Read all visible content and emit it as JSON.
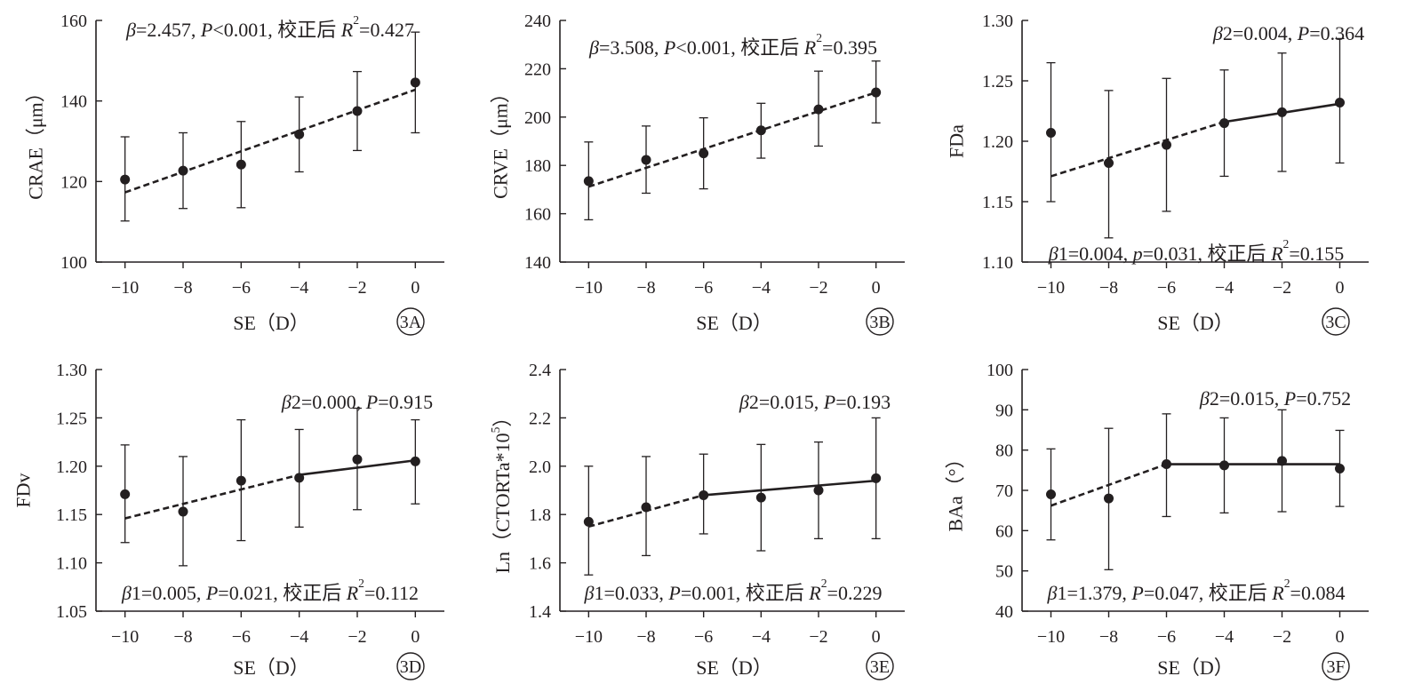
{
  "chart_data": [
    {
      "type": "scatter",
      "panel_label": "3A",
      "xlabel": "SE（D）",
      "ylabel": "CRAE（μm）",
      "xlim": [
        -11,
        1
      ],
      "ylim": [
        100,
        160
      ],
      "xticks": [
        -10,
        -8,
        -6,
        -4,
        -2,
        0
      ],
      "yticks": [
        100,
        120,
        140,
        160
      ],
      "xtick_labels": [
        "−10",
        "−8",
        "−6",
        "−4",
        "−2",
        "0"
      ],
      "ytick_labels": [
        "100",
        "120",
        "140",
        "160"
      ],
      "x": [
        -10,
        -8,
        -6,
        -4,
        -2,
        0
      ],
      "y": [
        120.5,
        122.7,
        124.2,
        131.7,
        137.5,
        144.6
      ],
      "err_low": [
        110.2,
        113.3,
        113.5,
        122.4,
        127.7,
        132.1
      ],
      "err_high": [
        131.1,
        132.1,
        134.9,
        141.0,
        147.3,
        157.1
      ],
      "fits": [
        {
          "x": [
            -10,
            0
          ],
          "y": [
            117.3,
            142.8
          ],
          "style": "dashed"
        }
      ],
      "annotations": [
        {
          "parts": [
            {
              "t": "β",
              "i": true
            },
            {
              "t": "=2.457, "
            },
            {
              "t": "P",
              "i": true
            },
            {
              "t": "<0.001, 校正后 "
            },
            {
              "t": "R",
              "i": true
            },
            {
              "t": "2",
              "sup": true
            },
            {
              "t": "=0.427"
            }
          ]
        }
      ]
    },
    {
      "type": "scatter",
      "panel_label": "3B",
      "xlabel": "SE（D）",
      "ylabel": "CRVE（μm）",
      "xlim": [
        -11,
        1
      ],
      "ylim": [
        140,
        240
      ],
      "xticks": [
        -10,
        -8,
        -6,
        -4,
        -2,
        0
      ],
      "yticks": [
        140,
        160,
        180,
        200,
        220,
        240
      ],
      "xtick_labels": [
        "−10",
        "−8",
        "−6",
        "−4",
        "−2",
        "0"
      ],
      "ytick_labels": [
        "140",
        "160",
        "180",
        "200",
        "220",
        "240"
      ],
      "x": [
        -10,
        -8,
        -6,
        -4,
        -2,
        0
      ],
      "y": [
        173.5,
        182.3,
        185.0,
        194.5,
        203.2,
        210.2
      ],
      "err_low": [
        157.5,
        168.5,
        170.3,
        183.0,
        188.0,
        197.6
      ],
      "err_high": [
        189.7,
        196.3,
        199.7,
        205.7,
        219.0,
        223.2
      ],
      "fits": [
        {
          "x": [
            -10,
            0
          ],
          "y": [
            171.2,
            210.2
          ],
          "style": "dashed"
        }
      ],
      "annotations": [
        {
          "parts": [
            {
              "t": "β",
              "i": true
            },
            {
              "t": "=3.508, "
            },
            {
              "t": "P",
              "i": true
            },
            {
              "t": "<0.001, 校正后 "
            },
            {
              "t": "R",
              "i": true
            },
            {
              "t": "2",
              "sup": true
            },
            {
              "t": "=0.395"
            }
          ]
        }
      ]
    },
    {
      "type": "scatter",
      "panel_label": "3C",
      "xlabel": "SE（D）",
      "ylabel": "FDa",
      "xlim": [
        -11,
        1
      ],
      "ylim": [
        1.1,
        1.3
      ],
      "xticks": [
        -10,
        -8,
        -6,
        -4,
        -2,
        0
      ],
      "yticks": [
        1.1,
        1.15,
        1.2,
        1.25,
        1.3
      ],
      "xtick_labels": [
        "−10",
        "−8",
        "−6",
        "−4",
        "−2",
        "0"
      ],
      "ytick_labels": [
        "1.10",
        "1.15",
        "1.20",
        "1.25",
        "1.30"
      ],
      "x": [
        -10,
        -8,
        -6,
        -4,
        -2,
        0
      ],
      "y": [
        1.207,
        1.182,
        1.197,
        1.215,
        1.224,
        1.232
      ],
      "err_low": [
        1.15,
        1.12,
        1.142,
        1.171,
        1.175,
        1.182
      ],
      "err_high": [
        1.265,
        1.242,
        1.252,
        1.259,
        1.273,
        1.285
      ],
      "fits": [
        {
          "x": [
            -10,
            -4
          ],
          "y": [
            1.171,
            1.216
          ],
          "style": "dashed"
        },
        {
          "x": [
            -4,
            0
          ],
          "y": [
            1.216,
            1.231
          ],
          "style": "solid"
        }
      ],
      "annotations": [
        {
          "parts": [
            {
              "t": "β",
              "i": true
            },
            {
              "t": "2=0.004, "
            },
            {
              "t": "P",
              "i": true
            },
            {
              "t": "=0.364"
            }
          ]
        },
        {
          "parts": [
            {
              "t": "β",
              "i": true
            },
            {
              "t": "1=0.004, "
            },
            {
              "t": "p",
              "i": true
            },
            {
              "t": "=0.031, 校正后 "
            },
            {
              "t": "R",
              "i": true
            },
            {
              "t": "2",
              "sup": true
            },
            {
              "t": "=0.155"
            }
          ]
        }
      ]
    },
    {
      "type": "scatter",
      "panel_label": "3D",
      "xlabel": "SE（D）",
      "ylabel": "FDv",
      "xlim": [
        -11,
        1
      ],
      "ylim": [
        1.05,
        1.3
      ],
      "xticks": [
        -10,
        -8,
        -6,
        -4,
        -2,
        0
      ],
      "yticks": [
        1.05,
        1.1,
        1.15,
        1.2,
        1.25,
        1.3
      ],
      "xtick_labels": [
        "−10",
        "−8",
        "−6",
        "−4",
        "−2",
        "0"
      ],
      "ytick_labels": [
        "1.05",
        "1.10",
        "1.15",
        "1.20",
        "1.25",
        "1.30"
      ],
      "x": [
        -10,
        -8,
        -6,
        -4,
        -2,
        0
      ],
      "y": [
        1.171,
        1.153,
        1.185,
        1.188,
        1.207,
        1.205
      ],
      "err_low": [
        1.121,
        1.097,
        1.123,
        1.137,
        1.155,
        1.161
      ],
      "err_high": [
        1.222,
        1.21,
        1.248,
        1.238,
        1.26,
        1.248
      ],
      "fits": [
        {
          "x": [
            -10,
            -4
          ],
          "y": [
            1.146,
            1.191
          ],
          "style": "dashed"
        },
        {
          "x": [
            -4,
            0
          ],
          "y": [
            1.191,
            1.206
          ],
          "style": "solid"
        }
      ],
      "annotations": [
        {
          "parts": [
            {
              "t": "β",
              "i": true
            },
            {
              "t": "2=0.000, "
            },
            {
              "t": "P",
              "i": true
            },
            {
              "t": "=0.915"
            }
          ]
        },
        {
          "parts": [
            {
              "t": "β",
              "i": true
            },
            {
              "t": "1=0.005, "
            },
            {
              "t": "P",
              "i": true
            },
            {
              "t": "=0.021, 校正后 "
            },
            {
              "t": "R",
              "i": true
            },
            {
              "t": "2",
              "sup": true
            },
            {
              "t": "=0.112"
            }
          ]
        }
      ]
    },
    {
      "type": "scatter",
      "panel_label": "3E",
      "xlabel": "SE（D）",
      "ylabel_parts": [
        {
          "t": "Ln（CTORTa*10"
        },
        {
          "t": "5",
          "sup": true
        },
        {
          "t": "）"
        }
      ],
      "xlim": [
        -11,
        1
      ],
      "ylim": [
        1.4,
        2.4
      ],
      "xticks": [
        -10,
        -8,
        -6,
        -4,
        -2,
        0
      ],
      "yticks": [
        1.4,
        1.6,
        1.8,
        2.0,
        2.2,
        2.4
      ],
      "xtick_labels": [
        "−10",
        "−8",
        "−6",
        "−4",
        "−2",
        "0"
      ],
      "ytick_labels": [
        "1.4",
        "1.6",
        "1.8",
        "2.0",
        "2.2",
        "2.4"
      ],
      "x": [
        -10,
        -8,
        -6,
        -4,
        -2,
        0
      ],
      "y": [
        1.77,
        1.83,
        1.88,
        1.87,
        1.9,
        1.95
      ],
      "err_low": [
        1.55,
        1.63,
        1.72,
        1.65,
        1.7,
        1.7
      ],
      "err_high": [
        2.0,
        2.04,
        2.05,
        2.09,
        2.1,
        2.2
      ],
      "fits": [
        {
          "x": [
            -10,
            -6
          ],
          "y": [
            1.75,
            1.88
          ],
          "style": "dashed"
        },
        {
          "x": [
            -6,
            0
          ],
          "y": [
            1.88,
            1.94
          ],
          "style": "solid"
        }
      ],
      "annotations": [
        {
          "parts": [
            {
              "t": "β",
              "i": true
            },
            {
              "t": "2=0.015, "
            },
            {
              "t": "P",
              "i": true
            },
            {
              "t": "=0.193"
            }
          ]
        },
        {
          "parts": [
            {
              "t": "β",
              "i": true
            },
            {
              "t": "1=0.033, "
            },
            {
              "t": "P",
              "i": true
            },
            {
              "t": "=0.001, 校正后 "
            },
            {
              "t": "R",
              "i": true
            },
            {
              "t": "2",
              "sup": true
            },
            {
              "t": "=0.229"
            }
          ]
        }
      ]
    },
    {
      "type": "scatter",
      "panel_label": "3F",
      "xlabel": "SE（D）",
      "ylabel": "BAa（°）",
      "xlim": [
        -11,
        1
      ],
      "ylim": [
        40,
        100
      ],
      "xticks": [
        -10,
        -8,
        -6,
        -4,
        -2,
        0
      ],
      "yticks": [
        40,
        50,
        60,
        70,
        80,
        90,
        100
      ],
      "xtick_labels": [
        "−10",
        "−8",
        "−6",
        "−4",
        "−2",
        "0"
      ],
      "ytick_labels": [
        "40",
        "50",
        "60",
        "70",
        "80",
        "90",
        "100"
      ],
      "x": [
        -10,
        -8,
        -6,
        -4,
        -2,
        0
      ],
      "y": [
        69.0,
        68.0,
        76.5,
        76.2,
        77.3,
        75.4
      ],
      "err_low": [
        57.7,
        50.3,
        63.5,
        64.4,
        64.7,
        66.0
      ],
      "err_high": [
        80.3,
        85.4,
        89.0,
        88.0,
        90.0,
        84.9
      ],
      "fits": [
        {
          "x": [
            -10,
            -6
          ],
          "y": [
            66.2,
            76.5
          ],
          "style": "dashed"
        },
        {
          "x": [
            -6,
            0
          ],
          "y": [
            76.5,
            76.5
          ],
          "style": "solid"
        }
      ],
      "annotations": [
        {
          "parts": [
            {
              "t": "β",
              "i": true
            },
            {
              "t": "2=0.015, "
            },
            {
              "t": "P",
              "i": true
            },
            {
              "t": "=0.752"
            }
          ]
        },
        {
          "parts": [
            {
              "t": "β",
              "i": true
            },
            {
              "t": "1=1.379, "
            },
            {
              "t": "P",
              "i": true
            },
            {
              "t": "=0.047, 校正后 "
            },
            {
              "t": "R",
              "i": true
            },
            {
              "t": "2",
              "sup": true
            },
            {
              "t": "=0.084"
            }
          ]
        }
      ]
    }
  ]
}
